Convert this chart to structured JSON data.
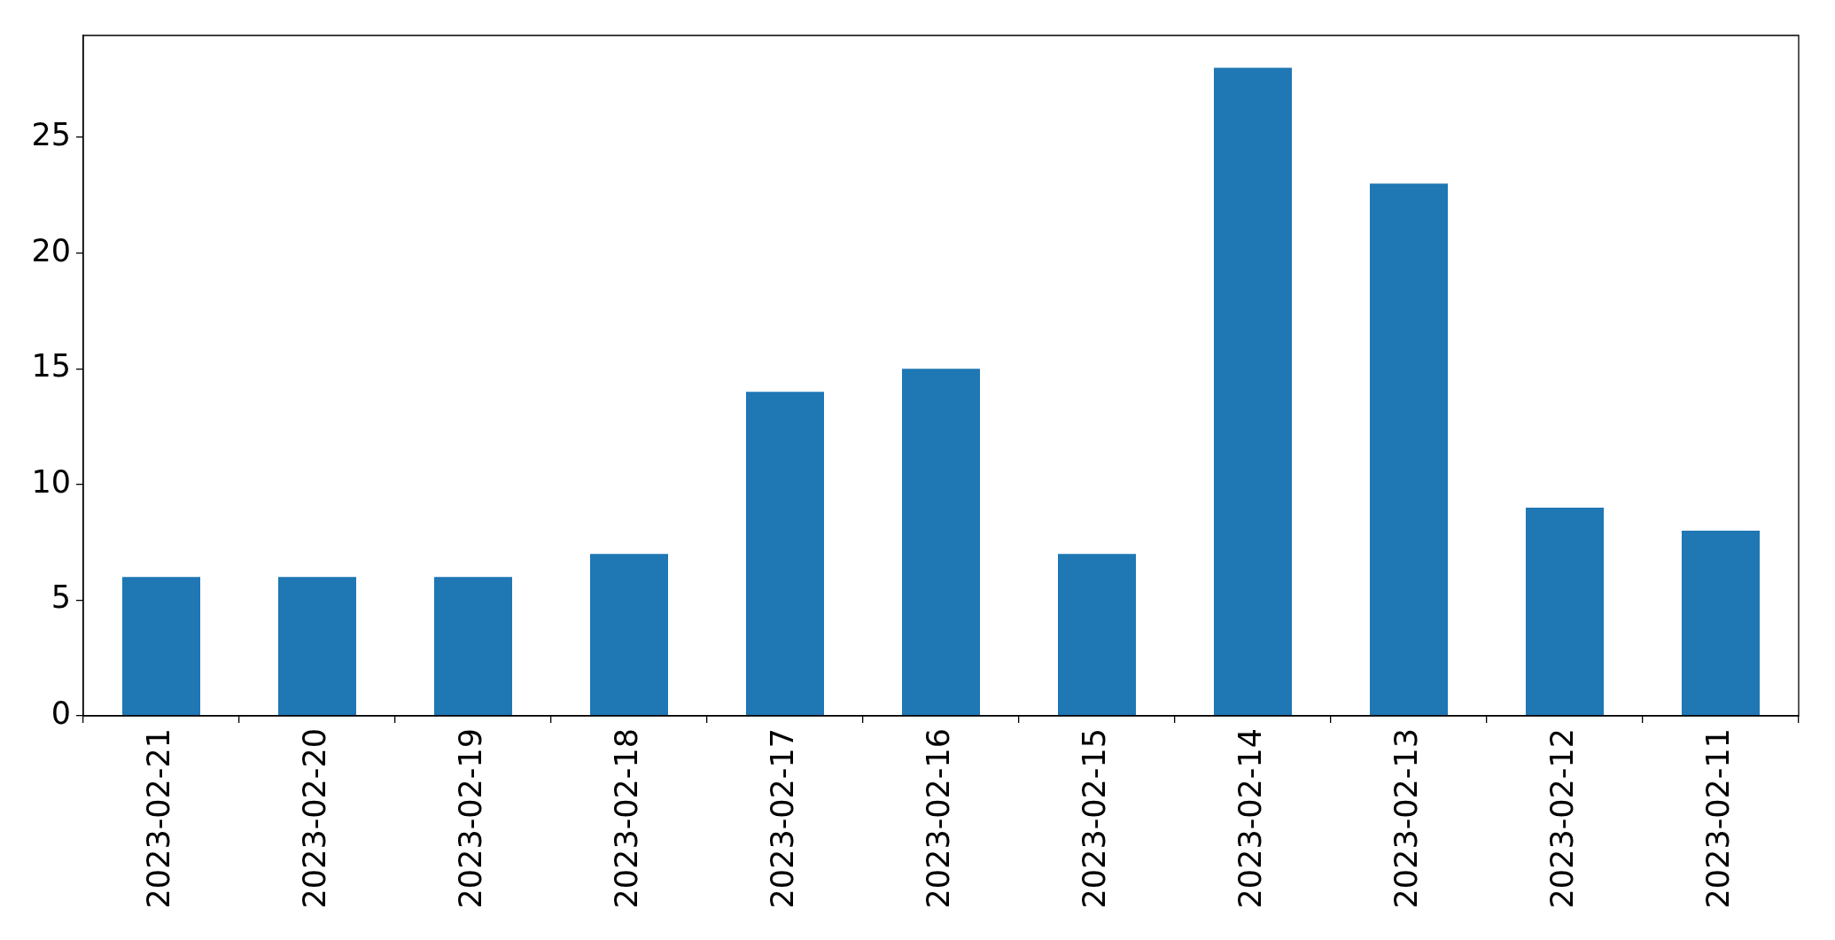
{
  "chart_data": {
    "type": "bar",
    "categories": [
      "2023-02-21",
      "2023-02-20",
      "2023-02-19",
      "2023-02-18",
      "2023-02-17",
      "2023-02-16",
      "2023-02-15",
      "2023-02-14",
      "2023-02-13",
      "2023-02-12",
      "2023-02-11"
    ],
    "values": [
      6,
      6,
      6,
      7,
      14,
      15,
      7,
      28,
      23,
      9,
      8
    ],
    "color": "#1f77b4",
    "ylim": [
      0,
      29.4
    ],
    "yticks": [
      0,
      5,
      10,
      15,
      20,
      25
    ]
  }
}
